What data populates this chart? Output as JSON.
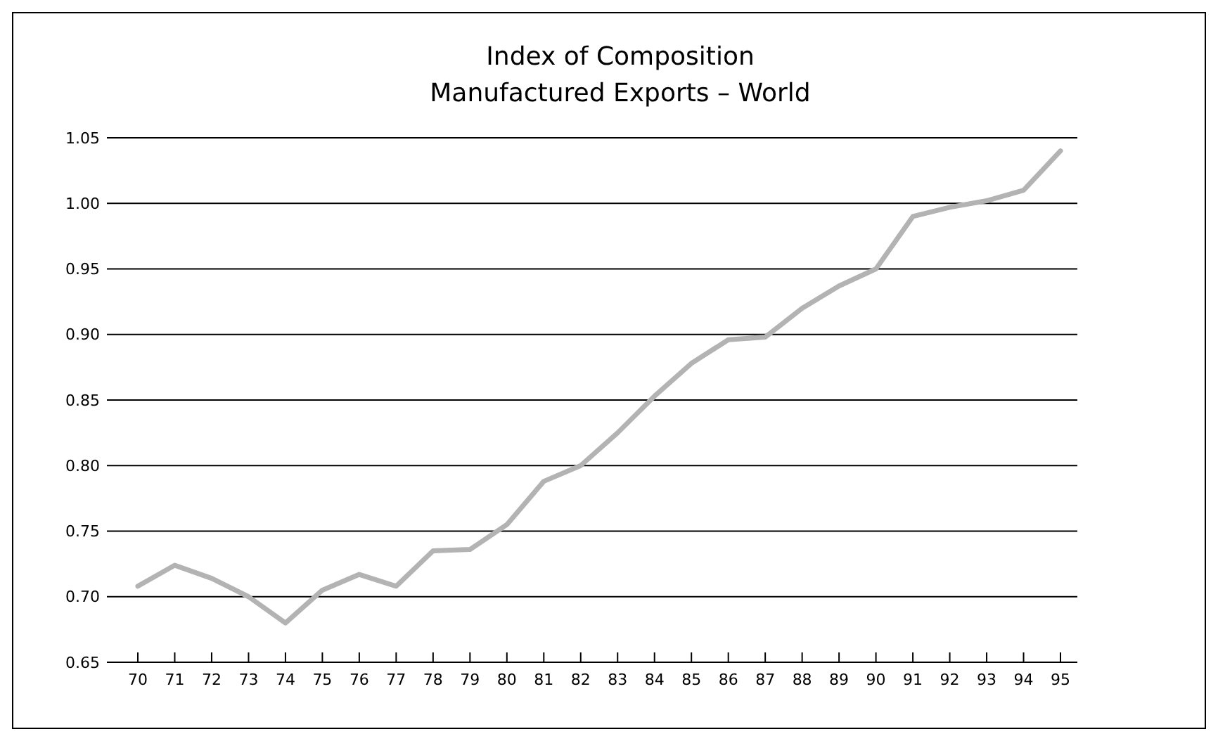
{
  "chart_data": {
    "type": "line",
    "title": "Index of Composition",
    "subtitle": "Manufactured Exports – World",
    "categories": [
      "70",
      "71",
      "72",
      "73",
      "74",
      "75",
      "76",
      "77",
      "78",
      "79",
      "80",
      "81",
      "82",
      "83",
      "84",
      "85",
      "86",
      "87",
      "88",
      "89",
      "90",
      "91",
      "92",
      "93",
      "94",
      "95"
    ],
    "series": [
      {
        "color": "#b3b3b3",
        "values": [
          0.708,
          0.724,
          0.714,
          0.7,
          0.68,
          0.705,
          0.717,
          0.708,
          0.735,
          0.736,
          0.755,
          0.788,
          0.8,
          0.825,
          0.853,
          0.878,
          0.896,
          0.898,
          0.92,
          0.937,
          0.95,
          0.99,
          0.997,
          1.002,
          1.01,
          1.04
        ]
      }
    ],
    "ylim": [
      0.65,
      1.05
    ],
    "yticks": [
      0.65,
      {
        "value": 0.7,
        "label": "0.70"
      },
      0.75,
      {
        "value": 0.8,
        "label": "0.80"
      },
      0.85,
      {
        "value": 0.9,
        "label": "0.90"
      },
      0.95,
      {
        "value": 1,
        "label": "1.00"
      },
      1.05
    ],
    "grid": "y",
    "marker": "none",
    "line_style": "solid"
  }
}
